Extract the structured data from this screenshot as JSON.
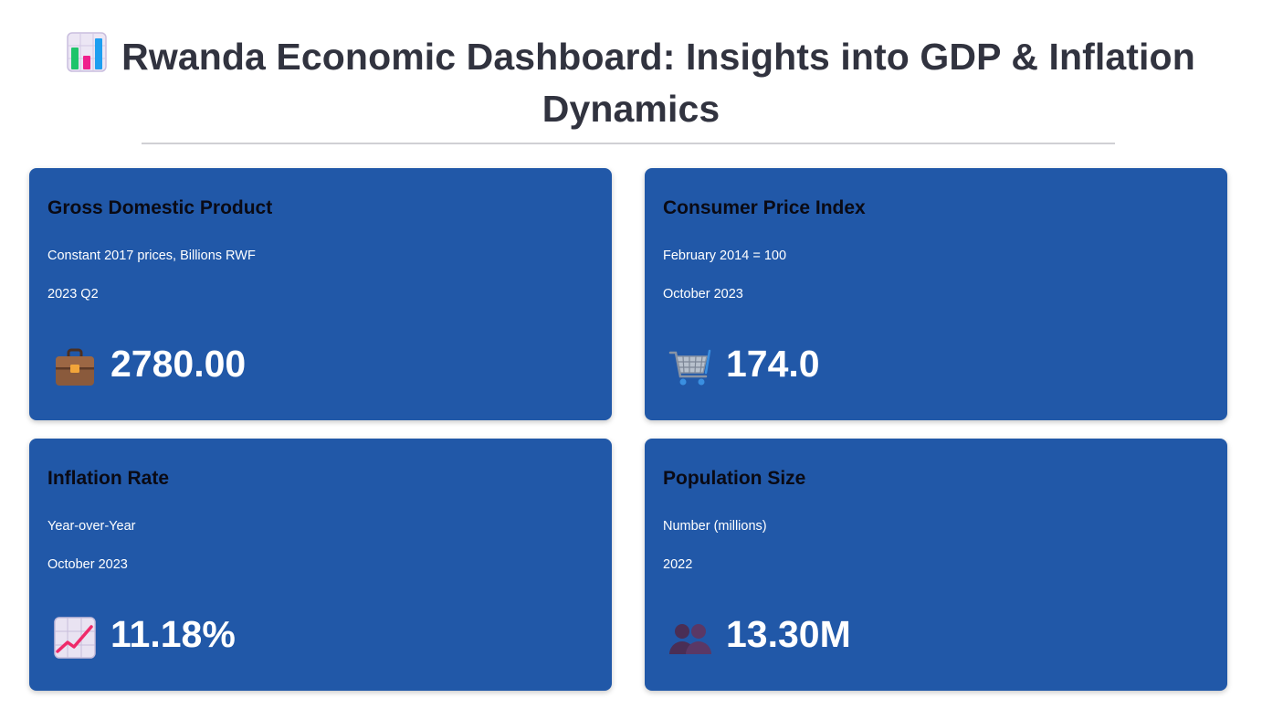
{
  "header": {
    "title": "Rwanda Economic Dashboard: Insights into GDP & Inflation Dynamics",
    "title_icon": "bar-chart-icon"
  },
  "cards": [
    {
      "title": "Gross Domestic Product",
      "subtitle": "Constant 2017 prices, Billions RWF",
      "period": "2023 Q2",
      "value": "2780.00",
      "icon": "briefcase-icon"
    },
    {
      "title": "Consumer Price Index",
      "subtitle": "February 2014 = 100",
      "period": "October 2023",
      "value": "174.0",
      "icon": "shopping-cart-icon"
    },
    {
      "title": "Inflation Rate",
      "subtitle": "Year-over-Year",
      "period": "October 2023",
      "value": "11.18%",
      "icon": "chart-increasing-icon"
    },
    {
      "title": "Population Size",
      "subtitle": "Number (millions)",
      "period": "2022",
      "value": "13.30M",
      "icon": "people-icon"
    }
  ],
  "colors": {
    "card_background": "#2158a8",
    "title_text": "#31333f",
    "card_title_text": "#0a0a14",
    "card_value_text": "#ffffff"
  }
}
